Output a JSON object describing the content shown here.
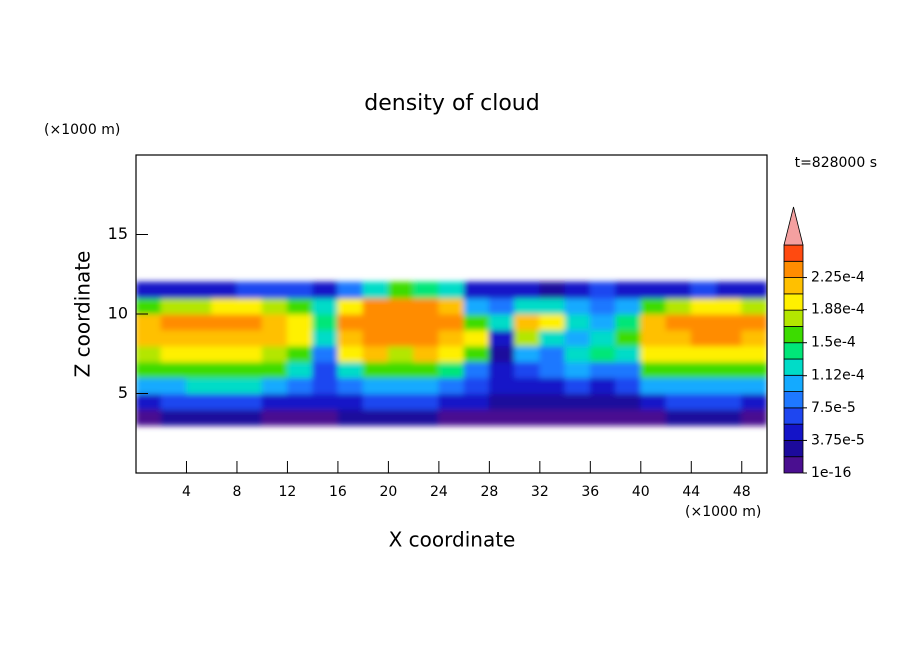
{
  "chart_data": {
    "type": "contour",
    "title": "density of cloud",
    "xlabel": "X coordinate",
    "ylabel": "Z coordinate",
    "xunit": "(×1000 m)",
    "yunit": "(×1000 m)",
    "time_label": "t=828000 s",
    "xlim": [
      0,
      50
    ],
    "ylim": [
      0,
      20
    ],
    "xticks": [
      4,
      8,
      12,
      16,
      20,
      24,
      28,
      32,
      36,
      40,
      44,
      48
    ],
    "yticks": [
      5,
      10,
      15
    ],
    "x": [
      1,
      3,
      5,
      7,
      9,
      11,
      13,
      15,
      17,
      19,
      21,
      23,
      25,
      27,
      29,
      31,
      33,
      35,
      37,
      39,
      41,
      43,
      45,
      47,
      49
    ],
    "y": [
      3.5,
      4.5,
      5.5,
      6.5,
      7.5,
      8.5,
      9.5,
      10.5,
      11.5
    ],
    "z": [
      [
        1e-05,
        2e-05,
        2e-05,
        2e-05,
        2e-05,
        1e-05,
        1e-05,
        1e-05,
        2e-05,
        2e-05,
        2e-05,
        2e-05,
        1e-05,
        1e-05,
        1e-05,
        5e-06,
        5e-06,
        5e-06,
        5e-06,
        1e-05,
        1e-05,
        2e-05,
        2e-05,
        2e-05,
        1e-05
      ],
      [
        5e-05,
        6e-05,
        6e-05,
        6e-05,
        6e-05,
        5e-05,
        5e-05,
        4e-05,
        5e-05,
        6e-05,
        6e-05,
        6e-05,
        5e-05,
        5e-05,
        3e-05,
        2e-05,
        2e-05,
        2e-05,
        2e-05,
        3e-05,
        5e-05,
        6e-05,
        6e-05,
        6e-05,
        5e-05
      ],
      [
        0.00011,
        0.00011,
        0.00012,
        0.00012,
        0.00012,
        0.00011,
        9e-05,
        6e-05,
        8e-05,
        0.0001,
        0.0001,
        0.0001,
        8e-05,
        7e-05,
        5e-05,
        4e-05,
        5e-05,
        6e-05,
        5e-05,
        6e-05,
        0.0001,
        0.00011,
        0.00011,
        0.00011,
        0.0001
      ],
      [
        0.00015,
        0.00015,
        0.00016,
        0.00016,
        0.00016,
        0.00015,
        0.00013,
        7e-05,
        0.00013,
        0.00015,
        0.00015,
        0.00015,
        0.00014,
        9e-05,
        5e-05,
        6e-05,
        8e-05,
        0.0001,
        8e-05,
        9e-05,
        0.00015,
        0.00016,
        0.00016,
        0.00016,
        0.00015
      ],
      [
        0.00018,
        0.00019,
        0.00019,
        0.00019,
        0.00019,
        0.00018,
        0.00016,
        9e-05,
        0.0002,
        0.00021,
        0.00018,
        0.00021,
        0.0002,
        0.00016,
        3e-05,
        0.0001,
        9e-05,
        0.00012,
        0.00014,
        0.00012,
        0.00019,
        0.0002,
        0.0002,
        0.0002,
        0.00019
      ],
      [
        0.00021,
        0.00022,
        0.00022,
        0.00022,
        0.00022,
        0.00021,
        0.00019,
        0.00012,
        0.00022,
        0.00023,
        0.00023,
        0.00023,
        0.00022,
        0.0002,
        5e-05,
        0.00018,
        0.00012,
        0.0001,
        0.00013,
        0.00015,
        0.00021,
        0.00022,
        0.00023,
        0.00023,
        0.00022
      ],
      [
        0.00022,
        0.00023,
        0.00023,
        0.00023,
        0.00023,
        0.00022,
        0.0002,
        0.00014,
        0.00023,
        0.00024,
        0.00024,
        0.00024,
        0.00023,
        0.00015,
        0.00012,
        0.00022,
        0.0002,
        0.00012,
        0.0001,
        0.00014,
        0.00022,
        0.00023,
        0.00024,
        0.00024,
        0.00023
      ],
      [
        0.00016,
        0.00017,
        0.00018,
        0.00019,
        0.00019,
        0.00018,
        0.00016,
        0.00012,
        0.0002,
        0.00023,
        0.00023,
        0.00023,
        0.00022,
        0.0001,
        8e-05,
        0.00012,
        0.00013,
        0.0001,
        8e-05,
        0.0001,
        0.00016,
        0.00018,
        0.00019,
        0.00019,
        0.00018
      ],
      [
        5e-05,
        5e-05,
        5e-05,
        5e-05,
        6e-05,
        6e-05,
        6e-05,
        5e-05,
        8e-05,
        0.00013,
        0.00015,
        0.00014,
        0.00012,
        4e-05,
        5e-05,
        4e-05,
        3e-05,
        5e-05,
        6e-05,
        5e-05,
        4e-05,
        5e-05,
        6e-05,
        5e-05,
        5e-05
      ]
    ],
    "levels": [
      1e-16,
      1.875e-05,
      3.75e-05,
      5.625e-05,
      7.5e-05,
      9.375e-05,
      0.0001125,
      0.00013125,
      0.00015,
      0.00016875,
      0.0001875,
      0.00020625,
      0.000225,
      0.00024375
    ],
    "colors": [
      "#4a0f90",
      "#1c0a9c",
      "#1414c8",
      "#1e46f0",
      "#1e78ff",
      "#14aaff",
      "#00dcc8",
      "#00e678",
      "#3cdc00",
      "#b4e600",
      "#fff000",
      "#ffc000",
      "#ff8c00",
      "#ff4a10"
    ],
    "extend_color": "#f4a0a0",
    "colorbar_ticks": [
      {
        "value": 1e-16,
        "label": "1e-16"
      },
      {
        "value": 3.75e-05,
        "label": "3.75e-5"
      },
      {
        "value": 7.5e-05,
        "label": "7.5e-5"
      },
      {
        "value": 0.000112,
        "label": "1.12e-4"
      },
      {
        "value": 0.00015,
        "label": "1.5e-4"
      },
      {
        "value": 0.000188,
        "label": "1.88e-4"
      },
      {
        "value": 0.000225,
        "label": "2.25e-4"
      }
    ]
  }
}
